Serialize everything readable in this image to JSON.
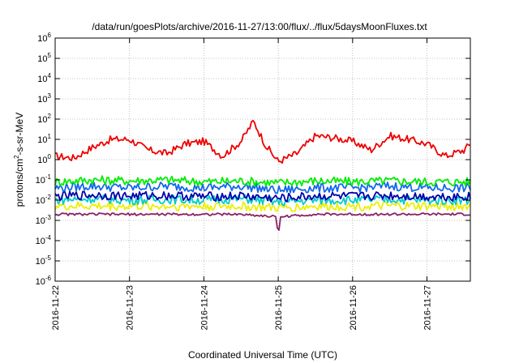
{
  "chart_data": {
    "type": "line",
    "title": "/data/run/goesPlots/archive/2016-11-27/13:00/flux/../flux/5daysMoonFluxes.txt",
    "xlabel": "Coordinated Universal Time (UTC)",
    "ylabel": {
      "base": "protons/cm",
      "sup": "2",
      "rest": "-s-sr-MeV"
    },
    "y_scale": "log",
    "ylim_exponents": [
      -6,
      6
    ],
    "y_tick_labels": [
      {
        "base": "10",
        "exp": "-6"
      },
      {
        "base": "10",
        "exp": "-5"
      },
      {
        "base": "10",
        "exp": "-4"
      },
      {
        "base": "10",
        "exp": "-3"
      },
      {
        "base": "10",
        "exp": "-2"
      },
      {
        "base": "10",
        "exp": "-1"
      },
      {
        "base": "10",
        "exp": "0"
      },
      {
        "base": "10",
        "exp": "1"
      },
      {
        "base": "10",
        "exp": "2"
      },
      {
        "base": "10",
        "exp": "3"
      },
      {
        "base": "10",
        "exp": "4"
      },
      {
        "base": "10",
        "exp": "5"
      },
      {
        "base": "10",
        "exp": "6"
      }
    ],
    "x_range_days": [
      "2016-11-22",
      "2016-11-27 14:00"
    ],
    "x_tick_labels": [
      "2016-11-22",
      "2016-11-23",
      "2016-11-24",
      "2016-11-25",
      "2016-11-26",
      "2016-11-27"
    ],
    "grid": true,
    "series": [
      {
        "color": "#ee0000",
        "x": [
          "2016-11-22 00:00",
          "2016-11-22 06:00",
          "2016-11-22 12:00",
          "2016-11-22 18:00",
          "2016-11-23 00:00",
          "2016-11-23 06:00",
          "2016-11-23 12:00",
          "2016-11-23 18:00",
          "2016-11-24 00:00",
          "2016-11-24 06:00",
          "2016-11-24 12:00",
          "2016-11-24 16:00",
          "2016-11-24 20:00",
          "2016-11-25 00:00",
          "2016-11-25 06:00",
          "2016-11-25 12:00",
          "2016-11-25 18:00",
          "2016-11-26 00:00",
          "2016-11-26 06:00",
          "2016-11-26 12:00",
          "2016-11-26 18:00",
          "2016-11-27 00:00",
          "2016-11-27 06:00",
          "2016-11-27 12:00",
          "2016-11-27 14:00"
        ],
        "y": [
          1.5,
          1.2,
          4.0,
          10.0,
          10.0,
          3.0,
          2.0,
          6.0,
          8.0,
          1.5,
          8.0,
          80.0,
          5.0,
          0.8,
          2.0,
          15.0,
          12.0,
          8.0,
          3.0,
          15.0,
          10.0,
          6.0,
          1.5,
          3.0,
          6.0
        ]
      },
      {
        "color": "#00ee00",
        "x": [
          "2016-11-22 00:00",
          "2016-11-22 12:00",
          "2016-11-23 00:00",
          "2016-11-23 12:00",
          "2016-11-24 00:00",
          "2016-11-24 12:00",
          "2016-11-25 00:00",
          "2016-11-25 12:00",
          "2016-11-26 00:00",
          "2016-11-26 12:00",
          "2016-11-27 00:00",
          "2016-11-27 14:00"
        ],
        "y": [
          0.08,
          0.1,
          0.09,
          0.1,
          0.08,
          0.09,
          0.07,
          0.09,
          0.08,
          0.09,
          0.08,
          0.08
        ]
      },
      {
        "color": "#1166ee",
        "x": [
          "2016-11-22 00:00",
          "2016-11-22 12:00",
          "2016-11-23 00:00",
          "2016-11-23 12:00",
          "2016-11-24 00:00",
          "2016-11-24 12:00",
          "2016-11-25 00:00",
          "2016-11-25 12:00",
          "2016-11-26 00:00",
          "2016-11-26 12:00",
          "2016-11-27 00:00",
          "2016-11-27 14:00"
        ],
        "y": [
          0.04,
          0.05,
          0.04,
          0.05,
          0.04,
          0.05,
          0.03,
          0.04,
          0.04,
          0.05,
          0.04,
          0.04
        ]
      },
      {
        "color": "#00cccc",
        "x": [
          "2016-11-22 00:00",
          "2016-11-22 12:00",
          "2016-11-23 00:00",
          "2016-11-23 12:00",
          "2016-11-24 00:00",
          "2016-11-24 12:00",
          "2016-11-25 00:00",
          "2016-11-25 12:00",
          "2016-11-26 00:00",
          "2016-11-26 12:00",
          "2016-11-27 00:00",
          "2016-11-27 14:00"
        ],
        "y": [
          0.01,
          0.012,
          0.01,
          0.011,
          0.01,
          0.012,
          0.008,
          0.01,
          0.01,
          0.011,
          0.01,
          0.01
        ]
      },
      {
        "color": "#0000aa",
        "x": [
          "2016-11-22 00:00",
          "2016-11-22 12:00",
          "2016-11-23 00:00",
          "2016-11-23 12:00",
          "2016-11-24 00:00",
          "2016-11-24 12:00",
          "2016-11-25 00:00",
          "2016-11-25 12:00",
          "2016-11-26 00:00",
          "2016-11-26 12:00",
          "2016-11-27 00:00",
          "2016-11-27 14:00"
        ],
        "y": [
          0.015,
          0.018,
          0.016,
          0.017,
          0.015,
          0.016,
          0.012,
          0.016,
          0.015,
          0.017,
          0.015,
          0.015
        ]
      },
      {
        "color": "#eeee00",
        "x": [
          "2016-11-22 00:00",
          "2016-11-22 12:00",
          "2016-11-23 00:00",
          "2016-11-23 12:00",
          "2016-11-24 00:00",
          "2016-11-24 12:00",
          "2016-11-25 00:00",
          "2016-11-25 12:00",
          "2016-11-26 00:00",
          "2016-11-26 12:00",
          "2016-11-27 00:00",
          "2016-11-27 14:00"
        ],
        "y": [
          0.005,
          0.005,
          0.005,
          0.005,
          0.005,
          0.005,
          0.004,
          0.005,
          0.005,
          0.005,
          0.005,
          0.005
        ]
      },
      {
        "color": "#882266",
        "x": [
          "2016-11-22 00:00",
          "2016-11-22 12:00",
          "2016-11-23 00:00",
          "2016-11-23 12:00",
          "2016-11-24 00:00",
          "2016-11-24 12:00",
          "2016-11-25 00:00",
          "2016-11-25 12:00",
          "2016-11-26 00:00",
          "2016-11-26 12:00",
          "2016-11-27 00:00",
          "2016-11-27 14:00"
        ],
        "y": [
          0.002,
          0.002,
          0.002,
          0.002,
          0.002,
          0.002,
          0.0015,
          0.002,
          0.002,
          0.002,
          0.002,
          0.002
        ]
      }
    ]
  }
}
